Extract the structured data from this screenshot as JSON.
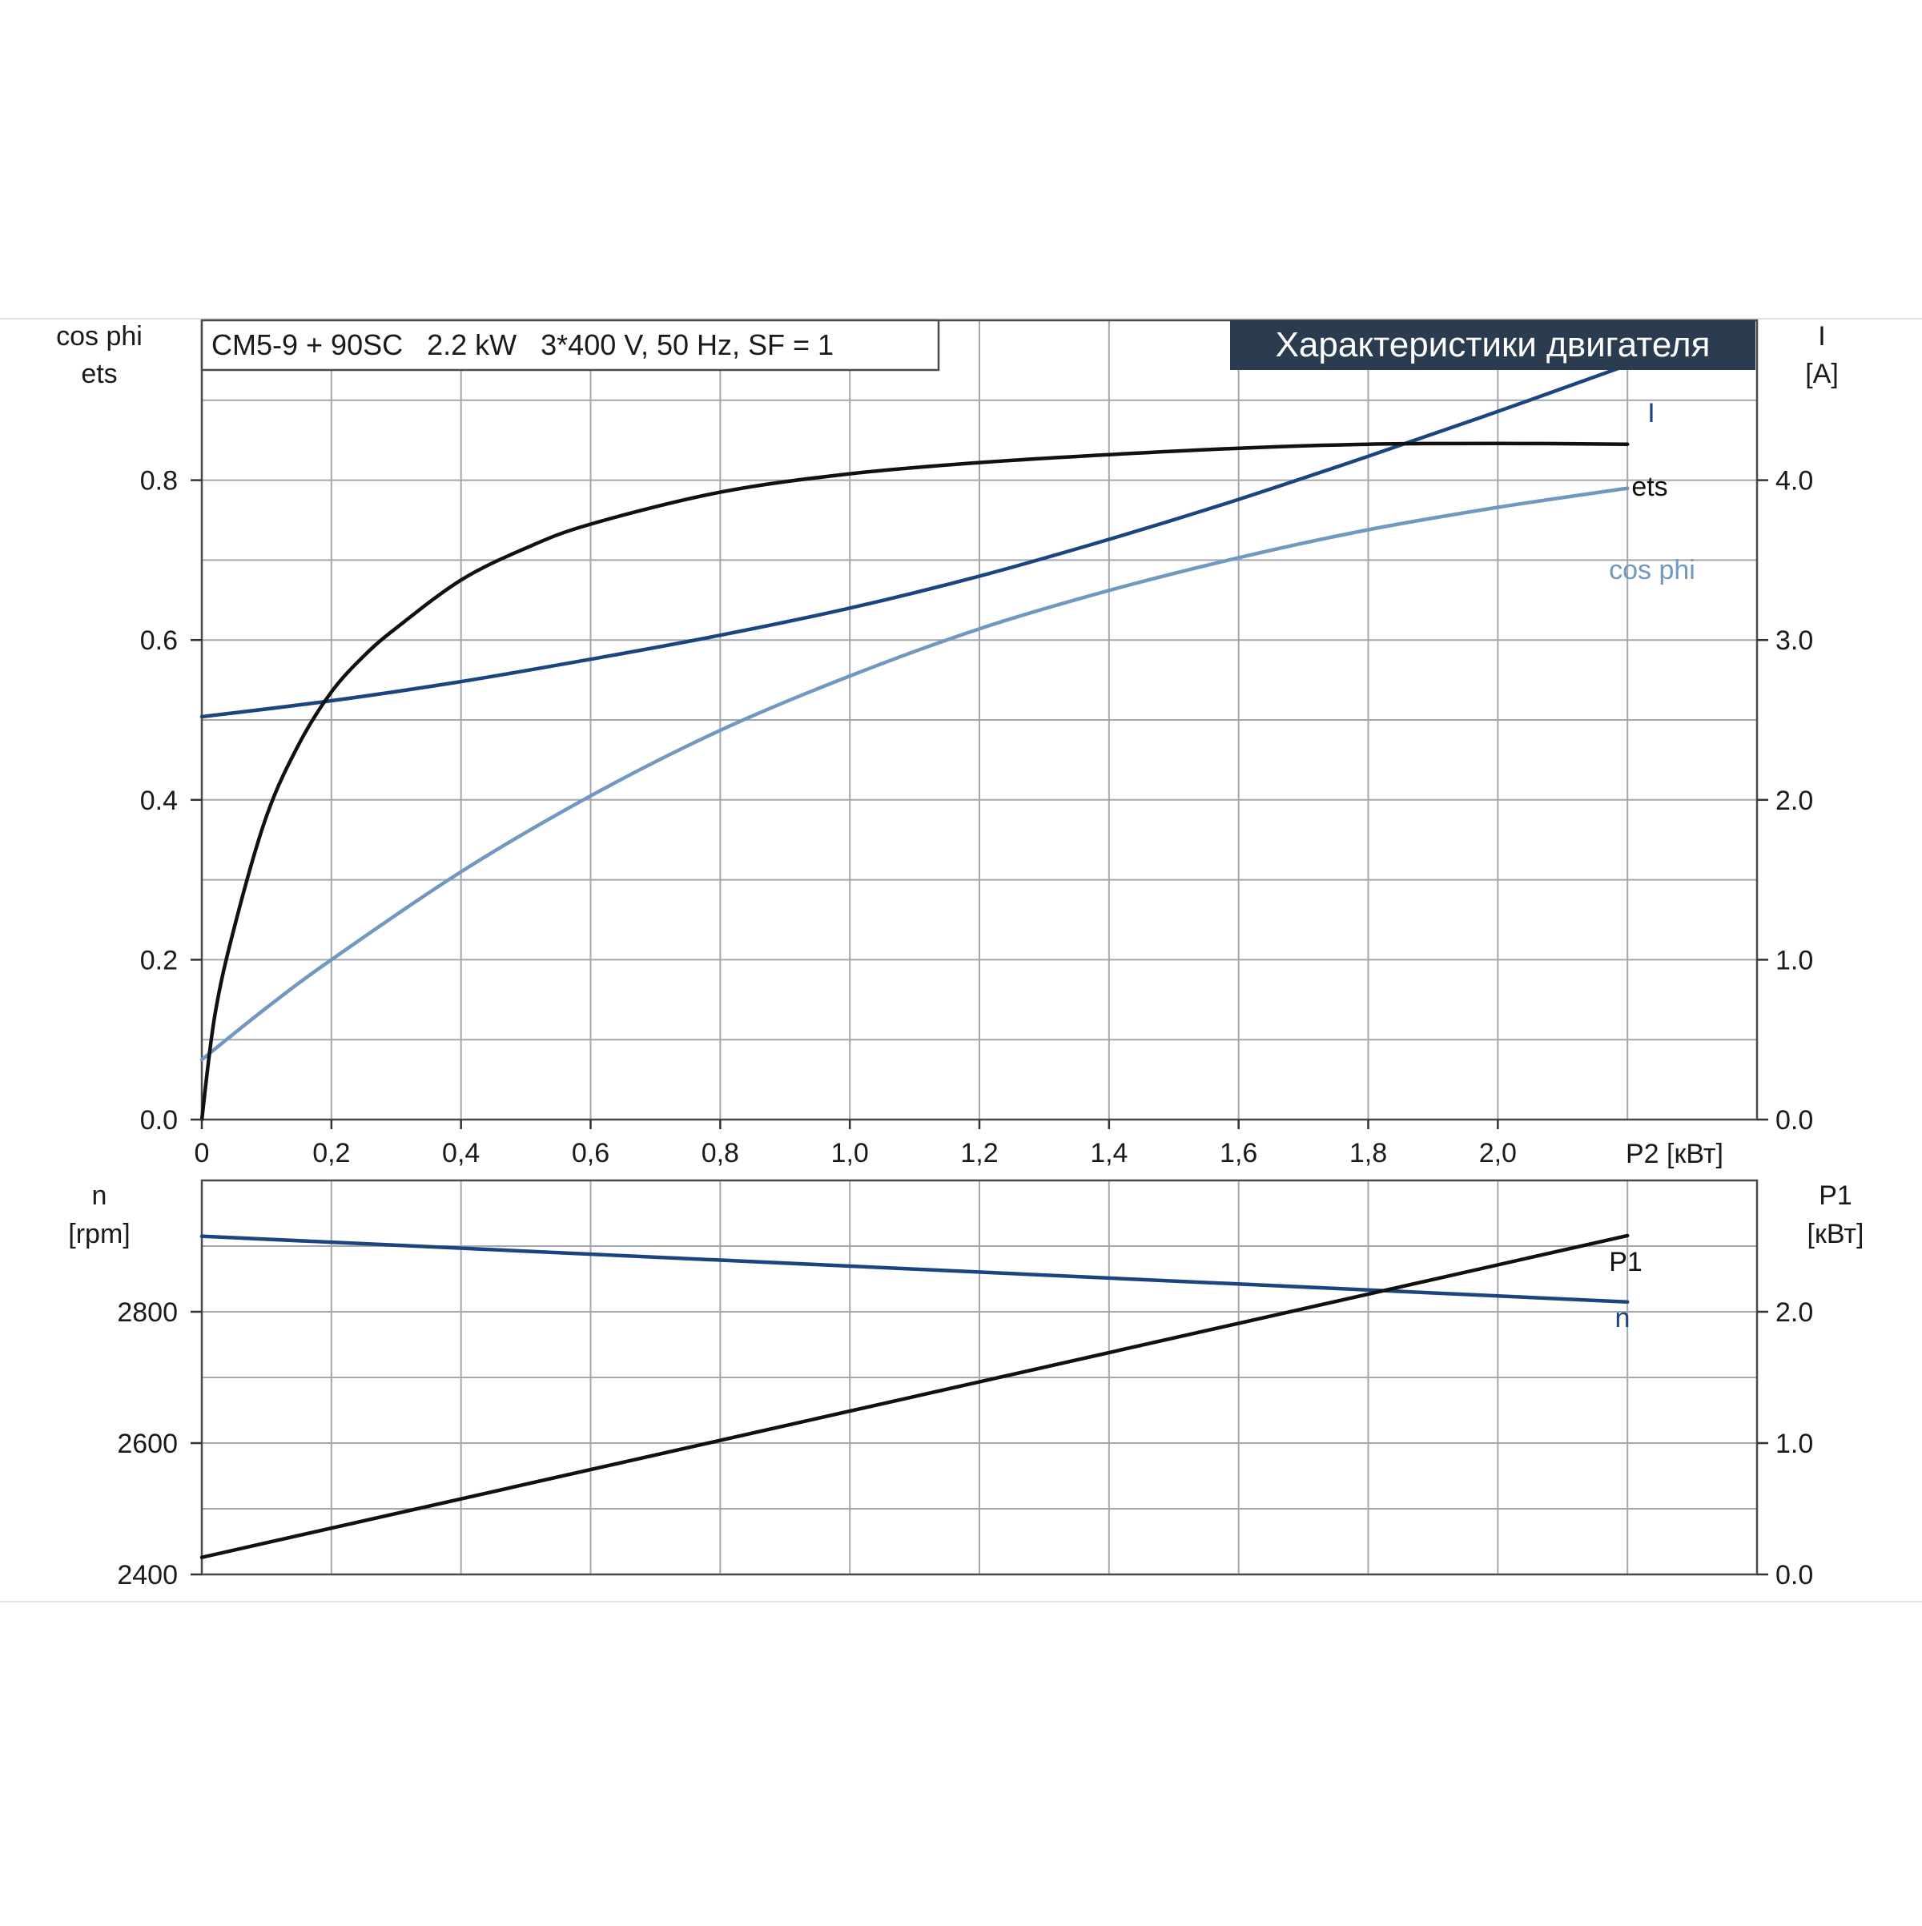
{
  "header": {
    "model_text": "CM5-9 + 90SC   2.2 kW   3*400 V, 50 Hz, SF = 1",
    "title": "Характеристики двигателя"
  },
  "colors": {
    "ets": "#111111",
    "I": "#1a4580",
    "cos_phi": "#7098c0",
    "n": "#1a4580",
    "P1": "#111111",
    "title_bg": "#2b3c50"
  },
  "chart_data": [
    {
      "type": "line",
      "xlabel": "P2 [кВт]",
      "x_ticks": [
        "0",
        "0,2",
        "0,4",
        "0,6",
        "0,8",
        "1,0",
        "1,2",
        "1,4",
        "1,6",
        "1,8",
        "2,0"
      ],
      "xlim": [
        0,
        2.4
      ],
      "left_axis_label": [
        "cos phi",
        "ets"
      ],
      "left_ticks": [
        "0.0",
        "0.2",
        "0.4",
        "0.6",
        "0.8"
      ],
      "ylim_left": [
        0,
        1.0
      ],
      "right_axis_label": [
        "I",
        "[A]"
      ],
      "right_ticks": [
        "0.0",
        "1.0",
        "2.0",
        "3.0",
        "4.0"
      ],
      "ylim_right": [
        0,
        5.0
      ],
      "grid": true,
      "series": [
        {
          "name": "ets",
          "axis": "left",
          "x": [
            0,
            0.02,
            0.05,
            0.1,
            0.15,
            0.2,
            0.25,
            0.3,
            0.4,
            0.5,
            0.6,
            0.8,
            1.0,
            1.2,
            1.4,
            1.6,
            1.8,
            2.0,
            2.2
          ],
          "y": [
            0,
            0.13,
            0.24,
            0.38,
            0.47,
            0.535,
            0.58,
            0.615,
            0.675,
            0.715,
            0.745,
            0.785,
            0.808,
            0.822,
            0.832,
            0.84,
            0.845,
            0.846,
            0.845
          ]
        },
        {
          "name": "I",
          "axis": "right",
          "x": [
            0,
            0.2,
            0.4,
            0.6,
            0.8,
            1.0,
            1.2,
            1.4,
            1.6,
            1.8,
            2.0,
            2.2
          ],
          "y": [
            2.52,
            2.62,
            2.74,
            2.88,
            3.03,
            3.2,
            3.4,
            3.63,
            3.88,
            4.15,
            4.43,
            4.72
          ]
        },
        {
          "name": "cos phi",
          "axis": "left",
          "x": [
            0,
            0.1,
            0.2,
            0.4,
            0.6,
            0.8,
            1.0,
            1.2,
            1.4,
            1.6,
            1.8,
            2.0,
            2.2
          ],
          "y": [
            0.075,
            0.14,
            0.2,
            0.31,
            0.405,
            0.487,
            0.555,
            0.614,
            0.662,
            0.703,
            0.738,
            0.766,
            0.79
          ]
        }
      ]
    },
    {
      "type": "line",
      "xlim": [
        0,
        2.4
      ],
      "left_axis_label": [
        "n",
        "[rpm]"
      ],
      "left_ticks": [
        "2400",
        "2600",
        "2800"
      ],
      "ylim_left": [
        2400,
        3000
      ],
      "right_axis_label": [
        "P1",
        "[кВт]"
      ],
      "right_ticks": [
        "0.0",
        "1.0",
        "2.0"
      ],
      "ylim_right": [
        0,
        3.0
      ],
      "grid": true,
      "series": [
        {
          "name": "n",
          "axis": "left",
          "x": [
            0,
            2.2
          ],
          "y": [
            2915,
            2815
          ]
        },
        {
          "name": "P1",
          "axis": "right",
          "x": [
            0,
            2.2
          ],
          "y": [
            0.13,
            2.58
          ]
        }
      ]
    }
  ]
}
